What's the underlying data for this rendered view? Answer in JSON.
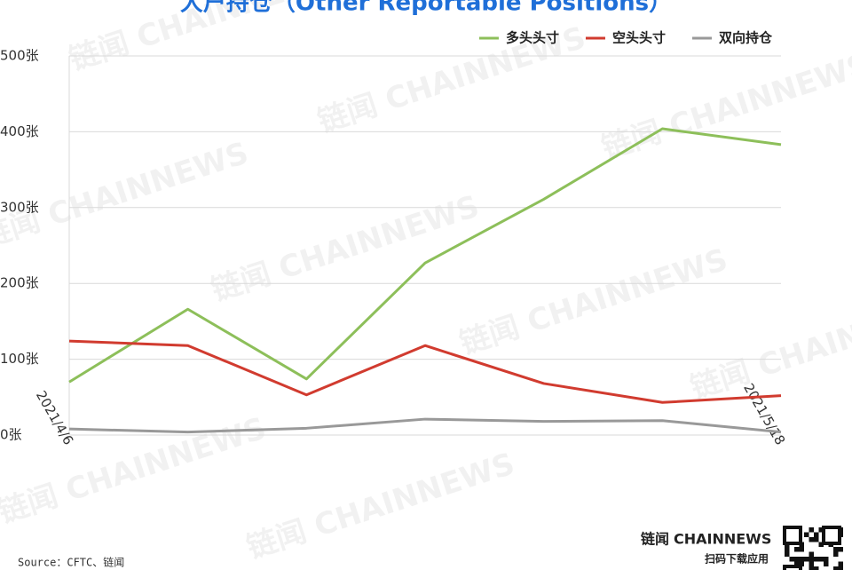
{
  "chart_data": {
    "type": "line",
    "title": "大户持仓（Other Reportable Positions）",
    "categories": [
      "2021/4/6",
      null,
      null,
      null,
      null,
      null,
      "2021/5/18"
    ],
    "series": [
      {
        "name": "多头头寸",
        "color": "#8dbf5a",
        "values": [
          70,
          166,
          74,
          227,
          311,
          404,
          383
        ]
      },
      {
        "name": "空头头寸",
        "color": "#d13b2f",
        "values": [
          124,
          118,
          53,
          118,
          68,
          43,
          52
        ]
      },
      {
        "name": "双向持仓",
        "color": "#999999",
        "values": [
          8,
          4,
          9,
          21,
          18,
          19,
          4
        ]
      }
    ],
    "ylim": [
      0,
      500
    ],
    "yticks": [
      {
        "value": 0,
        "label": "0张"
      },
      {
        "value": 100,
        "label": "100张"
      },
      {
        "value": 200,
        "label": "200张"
      },
      {
        "value": 300,
        "label": "300张"
      },
      {
        "value": 400,
        "label": "400张"
      },
      {
        "value": 500,
        "label": "500张"
      }
    ],
    "grid": true,
    "legend": "top-right",
    "source": "Source：CFTC、链闻",
    "watermark": "链闻 CHAINNEWS",
    "logo": {
      "brand": "链闻",
      "brand_en": "CHAINNEWS",
      "tagline": "扫码下载应用"
    }
  }
}
